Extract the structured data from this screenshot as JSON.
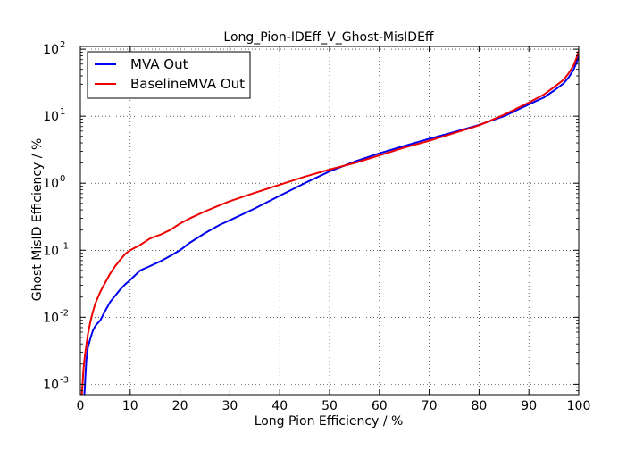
{
  "chart_data": {
    "type": "line",
    "title": "Long_Pion-IDEff_V_Ghost-MisIDEff",
    "xlabel": "Long Pion Efficiency / %",
    "ylabel": "Ghost MisID Efficiency / %",
    "xlim": [
      0,
      100
    ],
    "ylim": [
      0.0007,
      110
    ],
    "yscale": "log",
    "grid": true,
    "legend_position": "top-left",
    "x_ticks": [
      "0",
      "10",
      "20",
      "30",
      "40",
      "50",
      "60",
      "70",
      "80",
      "90",
      "100"
    ],
    "y_ticks": [
      {
        "value": 0.001,
        "base": "10",
        "exp": "-3"
      },
      {
        "value": 0.01,
        "base": "10",
        "exp": "-2"
      },
      {
        "value": 0.1,
        "base": "10",
        "exp": "-1"
      },
      {
        "value": 1,
        "base": "10",
        "exp": "0"
      },
      {
        "value": 10,
        "base": "10",
        "exp": "1"
      },
      {
        "value": 100,
        "base": "10",
        "exp": "2"
      }
    ],
    "series": [
      {
        "name": "MVA Out",
        "color": "#0000ee",
        "x": [
          0.8,
          0.9,
          1.0,
          1.2,
          1.5,
          2.0,
          2.5,
          3.0,
          3.5,
          4.0,
          5.0,
          6.0,
          7.0,
          8.0,
          9.0,
          10.0,
          12.0,
          14.0,
          16.0,
          18.0,
          20.0,
          22.0,
          25.0,
          28.0,
          30.0,
          35.0,
          40.0,
          45.0,
          50.0,
          55.0,
          60.0,
          65.0,
          70.0,
          75.0,
          80.0,
          85.0,
          90.0,
          93.0,
          95.0,
          97.0,
          98.0,
          99.0,
          99.5,
          100.0
        ],
        "y": [
          0.0007,
          0.0009,
          0.0013,
          0.0023,
          0.0035,
          0.0048,
          0.0063,
          0.0074,
          0.0082,
          0.009,
          0.0125,
          0.017,
          0.021,
          0.026,
          0.031,
          0.036,
          0.05,
          0.058,
          0.068,
          0.082,
          0.1,
          0.13,
          0.18,
          0.24,
          0.28,
          0.42,
          0.65,
          1.0,
          1.5,
          2.1,
          2.8,
          3.6,
          4.6,
          5.8,
          7.4,
          10.0,
          15.0,
          19.0,
          24.0,
          31.0,
          38.0,
          50.0,
          62.0,
          78.0
        ]
      },
      {
        "name": "BaselineMVA Out",
        "color": "#ee0000",
        "x": [
          0.3,
          0.4,
          0.5,
          0.6,
          0.8,
          1.0,
          1.5,
          2.0,
          2.5,
          3.0,
          4.0,
          5.0,
          6.0,
          7.0,
          8.0,
          9.0,
          10.0,
          12.0,
          14.0,
          16.0,
          18.0,
          20.0,
          22.0,
          25.0,
          28.0,
          30.0,
          35.0,
          40.0,
          45.0,
          50.0,
          55.0,
          60.0,
          65.0,
          70.0,
          75.0,
          80.0,
          85.0,
          90.0,
          93.0,
          95.0,
          97.0,
          98.0,
          99.0,
          99.5,
          100.0
        ],
        "y": [
          0.0007,
          0.0009,
          0.0012,
          0.0016,
          0.0023,
          0.003,
          0.0055,
          0.0085,
          0.012,
          0.016,
          0.024,
          0.033,
          0.045,
          0.058,
          0.072,
          0.088,
          0.1,
          0.12,
          0.15,
          0.17,
          0.2,
          0.25,
          0.3,
          0.38,
          0.47,
          0.54,
          0.72,
          0.95,
          1.25,
          1.6,
          2.0,
          2.6,
          3.4,
          4.3,
          5.6,
          7.3,
          10.5,
          16.0,
          21.0,
          27.0,
          35.0,
          44.0,
          58.0,
          72.0,
          95.0
        ]
      }
    ]
  }
}
